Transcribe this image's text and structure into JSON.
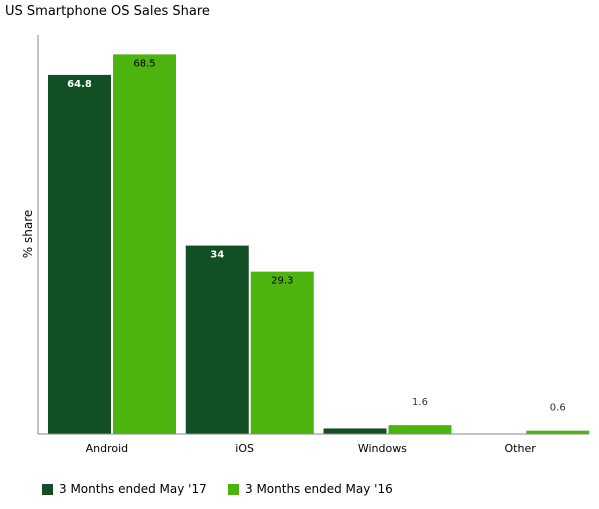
{
  "chart_data": {
    "type": "bar",
    "title": "US Smartphone OS Sales Share",
    "xlabel": "",
    "ylabel": "% share",
    "categories": [
      "Android",
      "iOS",
      "Windows",
      "Other"
    ],
    "ylim": [
      0,
      72
    ],
    "grid": false,
    "legend_position": "bottom-left",
    "series": [
      {
        "name": "3 Months ended May '17",
        "values": [
          64.8,
          34,
          1.0,
          0.0
        ],
        "labels": [
          "64.8",
          "34",
          "",
          ""
        ],
        "color": "#124f25"
      },
      {
        "name": "3 Months ended May '16",
        "values": [
          68.5,
          29.3,
          1.6,
          0.6
        ],
        "labels": [
          "68.5",
          "29.3",
          "1.6",
          "0.6"
        ],
        "color": "#4db40f"
      }
    ]
  }
}
